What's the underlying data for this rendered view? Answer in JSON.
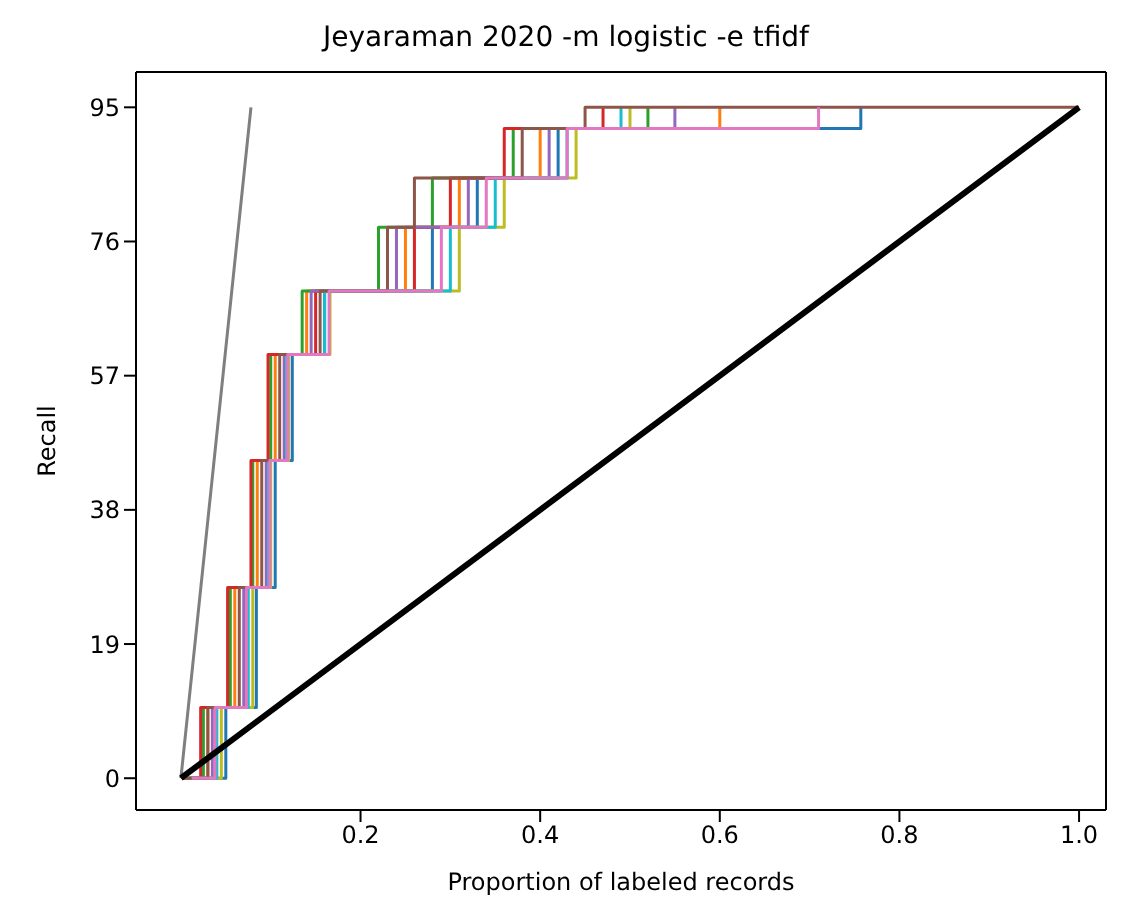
{
  "chart_data": {
    "type": "line",
    "title": "Jeyaraman 2020 -m logistic -e tfidf",
    "xlabel": "Proportion of labeled records",
    "ylabel": "Recall",
    "xlim": [
      -0.05,
      1.03
    ],
    "ylim": [
      -4.5,
      100
    ],
    "xticks": [
      0.2,
      0.4,
      0.6,
      0.8,
      {
        "value": 1,
        "label": "1.0"
      }
    ],
    "yticks": [
      0,
      19,
      38,
      57,
      76,
      95
    ],
    "series": [
      {
        "type": "step",
        "color": "#1f77b4",
        "x": [
          0.01,
          0.05,
          0.084,
          0.105,
          0.124,
          0.16,
          0.28,
          0.33,
          0.42,
          0.757
        ],
        "values": [
          0,
          10,
          27,
          45,
          60,
          69,
          78,
          85,
          92,
          95
        ]
      },
      {
        "type": "step",
        "color": "#ff7f0e",
        "x": [
          0.005,
          0.03,
          0.06,
          0.085,
          0.105,
          0.14,
          0.25,
          0.31,
          0.4,
          0.6
        ],
        "values": [
          0,
          10,
          27,
          45,
          60,
          69,
          78,
          85,
          92,
          95
        ]
      },
      {
        "type": "step",
        "color": "#2ca02c",
        "x": [
          0.003,
          0.025,
          0.055,
          0.08,
          0.1,
          0.135,
          0.22,
          0.28,
          0.37,
          0.52
        ],
        "values": [
          0,
          10,
          27,
          45,
          60,
          69,
          78,
          85,
          92,
          95
        ]
      },
      {
        "type": "step",
        "color": "#d62728",
        "x": [
          0.002,
          0.022,
          0.052,
          0.078,
          0.097,
          0.15,
          0.26,
          0.3,
          0.36,
          0.47
        ],
        "values": [
          0,
          10,
          27,
          45,
          60,
          69,
          78,
          85,
          92,
          95
        ]
      },
      {
        "type": "step",
        "color": "#9467bd",
        "x": [
          0.006,
          0.035,
          0.07,
          0.095,
          0.115,
          0.145,
          0.24,
          0.32,
          0.41,
          0.55
        ],
        "values": [
          0,
          10,
          27,
          45,
          60,
          69,
          78,
          85,
          92,
          95
        ]
      },
      {
        "type": "step",
        "color": "#bcbd22",
        "x": [
          0.008,
          0.045,
          0.08,
          0.1,
          0.12,
          0.166,
          0.31,
          0.36,
          0.44,
          0.5
        ],
        "values": [
          0,
          10,
          27,
          45,
          60,
          69,
          78,
          85,
          92,
          95
        ]
      },
      {
        "type": "step",
        "color": "#17becf",
        "x": [
          0.005,
          0.04,
          0.075,
          0.098,
          0.118,
          0.16,
          0.3,
          0.35,
          0.43,
          0.49
        ],
        "values": [
          0,
          10,
          27,
          45,
          60,
          69,
          78,
          85,
          92,
          95
        ]
      },
      {
        "type": "step",
        "color": "#8c564b",
        "x": [
          0.004,
          0.03,
          0.065,
          0.09,
          0.11,
          0.155,
          0.23,
          0.26,
          0.38,
          0.45,
          1
        ],
        "values": [
          0,
          10,
          27,
          45,
          60,
          69,
          78,
          85,
          92,
          95,
          95
        ]
      },
      {
        "type": "step",
        "color": "#e377c2",
        "x": [
          0.012,
          0.038,
          0.073,
          0.099,
          0.119,
          0.165,
          0.29,
          0.34,
          0.43,
          0.71
        ],
        "values": [
          0,
          10,
          27,
          45,
          60,
          69,
          78,
          85,
          92,
          95
        ]
      },
      {
        "type": "line",
        "color": "#7f7f7f",
        "x": [
          0,
          0.078
        ],
        "values": [
          0,
          95
        ]
      },
      {
        "type": "line",
        "color": "#000000",
        "x": [
          0,
          1
        ],
        "values": [
          0,
          95
        ]
      }
    ]
  }
}
